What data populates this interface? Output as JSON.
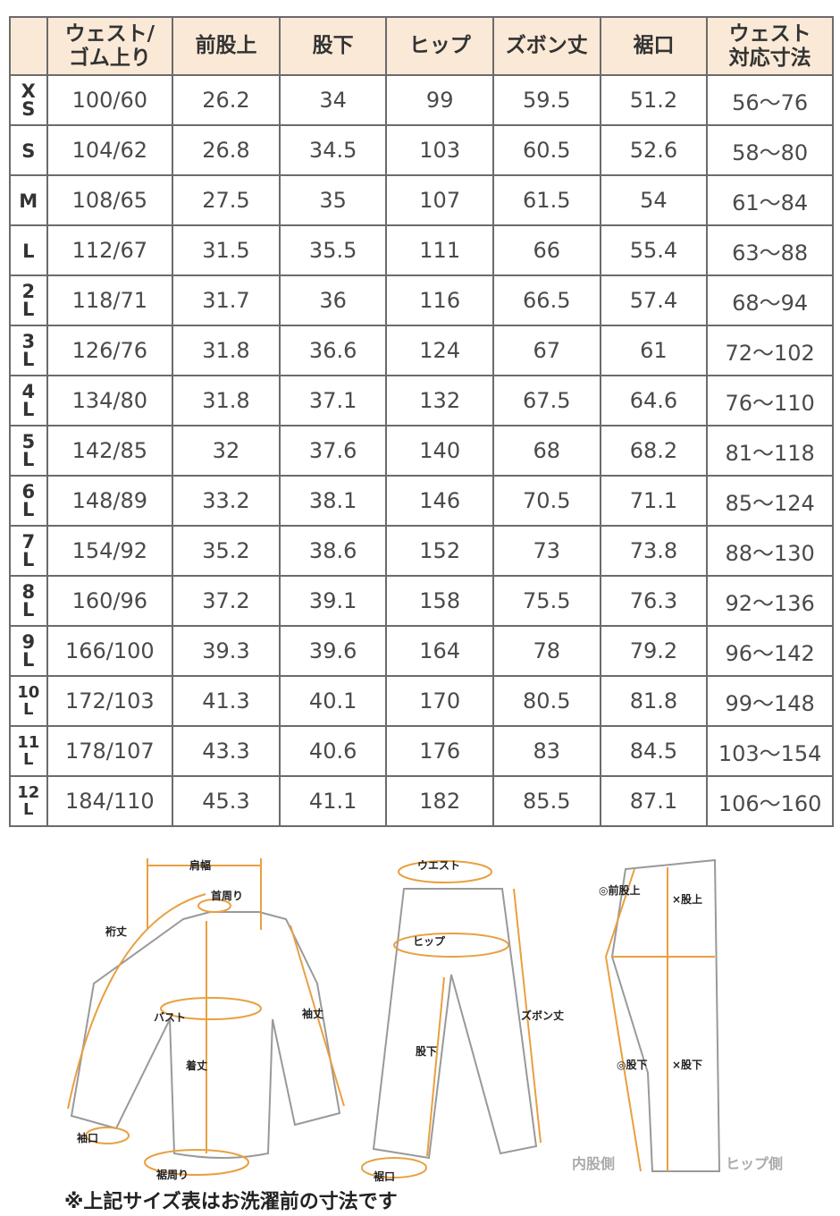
{
  "table": {
    "headers": [
      "",
      "ウェスト/\nゴム上り",
      "前股上",
      "股下",
      "ヒップ",
      "ズボン丈",
      "裾口",
      "ウェスト\n対応寸法"
    ],
    "rows": [
      [
        "XS",
        "100/60",
        "26.2",
        "34",
        "99",
        "59.5",
        "51.2",
        "56～76"
      ],
      [
        "S",
        "104/62",
        "26.8",
        "34.5",
        "103",
        "60.5",
        "52.6",
        "58～80"
      ],
      [
        "M",
        "108/65",
        "27.5",
        "35",
        "107",
        "61.5",
        "54",
        "61～84"
      ],
      [
        "L",
        "112/67",
        "31.5",
        "35.5",
        "111",
        "66",
        "55.4",
        "63～88"
      ],
      [
        "2L",
        "118/71",
        "31.7",
        "36",
        "116",
        "66.5",
        "57.4",
        "68～94"
      ],
      [
        "3L",
        "126/76",
        "31.8",
        "36.6",
        "124",
        "67",
        "61",
        "72～102"
      ],
      [
        "4L",
        "134/80",
        "31.8",
        "37.1",
        "132",
        "67.5",
        "64.6",
        "76～110"
      ],
      [
        "5L",
        "142/85",
        "32",
        "37.6",
        "140",
        "68",
        "68.2",
        "81～118"
      ],
      [
        "6L",
        "148/89",
        "33.2",
        "38.1",
        "146",
        "70.5",
        "71.1",
        "85～124"
      ],
      [
        "7L",
        "154/92",
        "35.2",
        "38.6",
        "152",
        "73",
        "73.8",
        "88～130"
      ],
      [
        "8L",
        "160/96",
        "37.2",
        "39.1",
        "158",
        "75.5",
        "76.3",
        "92～136"
      ],
      [
        "9L",
        "166/100",
        "39.3",
        "39.6",
        "164",
        "78",
        "79.2",
        "96～142"
      ],
      [
        "10L",
        "172/103",
        "41.3",
        "40.1",
        "170",
        "80.5",
        "81.8",
        "99～148"
      ],
      [
        "11L",
        "178/107",
        "43.3",
        "40.6",
        "176",
        "83",
        "84.5",
        "103～154"
      ],
      [
        "12L",
        "184/110",
        "45.3",
        "41.1",
        "182",
        "85.5",
        "87.1",
        "106～160"
      ]
    ]
  },
  "diagram": {
    "shirt": {
      "shoulder": "肩幅",
      "neck": "首周り",
      "yuki": "裄丈",
      "bust": "バスト",
      "sleeve": "袖丈",
      "length": "着丈",
      "cuff": "袖口",
      "hem": "裾周り"
    },
    "pants": {
      "waist": "ウエスト",
      "hip": "ヒップ",
      "inseam": "股下",
      "length": "ズボン丈",
      "hem": "裾口"
    },
    "side": {
      "front_rise": "◎前股上",
      "rise_x": "×股上",
      "inseam_o": "◎股下",
      "inseam_x": "×股下",
      "inner": "内股側",
      "hip_side": "ヒップ側"
    }
  },
  "colors": {
    "header_bg": "#fae9d6",
    "accent": "#e8a040",
    "border": "#6b6b6b"
  },
  "note": "※上記サイズ表はお洗濯前の寸法です"
}
